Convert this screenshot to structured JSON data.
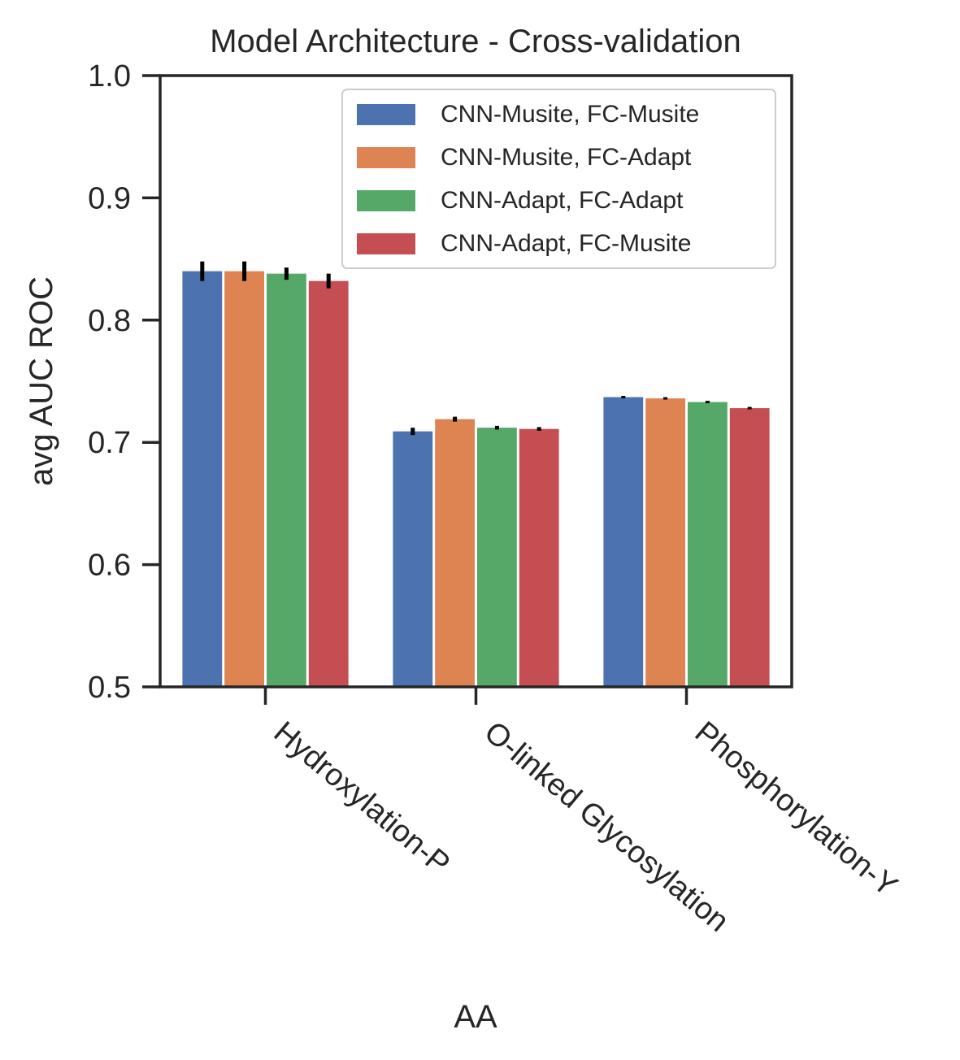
{
  "chart_data": {
    "type": "bar",
    "title": "Model Architecture - Cross-validation",
    "xlabel": "AA",
    "ylabel": "avg  AUC ROC",
    "ylim": [
      0.5,
      1.0
    ],
    "yticks": [
      0.5,
      0.6,
      0.7,
      0.8,
      0.9,
      1.0
    ],
    "ytick_labels": [
      "0.5",
      "0.6",
      "0.7",
      "0.8",
      "0.9",
      "1.0"
    ],
    "categories": [
      "Hydroxylation-P",
      "O-linked Glycosylation",
      "Phosphorylation-Y"
    ],
    "series": [
      {
        "name": "CNN-Musite, FC-Musite",
        "color": "#4c72b0",
        "values": [
          0.84,
          0.709,
          0.737
        ],
        "errors": [
          0.008,
          0.003,
          0.0005
        ]
      },
      {
        "name": "CNN-Musite, FC-Adapt",
        "color": "#dd8452",
        "values": [
          0.84,
          0.719,
          0.736
        ],
        "errors": [
          0.008,
          0.002,
          0.0005
        ]
      },
      {
        "name": "CNN-Adapt, FC-Adapt",
        "color": "#55a868",
        "values": [
          0.838,
          0.712,
          0.733
        ],
        "errors": [
          0.005,
          0.0015,
          0.0005
        ]
      },
      {
        "name": "CNN-Adapt, FC-Musite",
        "color": "#c44e52",
        "values": [
          0.832,
          0.711,
          0.728
        ],
        "errors": [
          0.006,
          0.0015,
          0.0005
        ]
      }
    ],
    "grid": false,
    "legend_position": "top-right",
    "error_bar_color": "#000000"
  }
}
